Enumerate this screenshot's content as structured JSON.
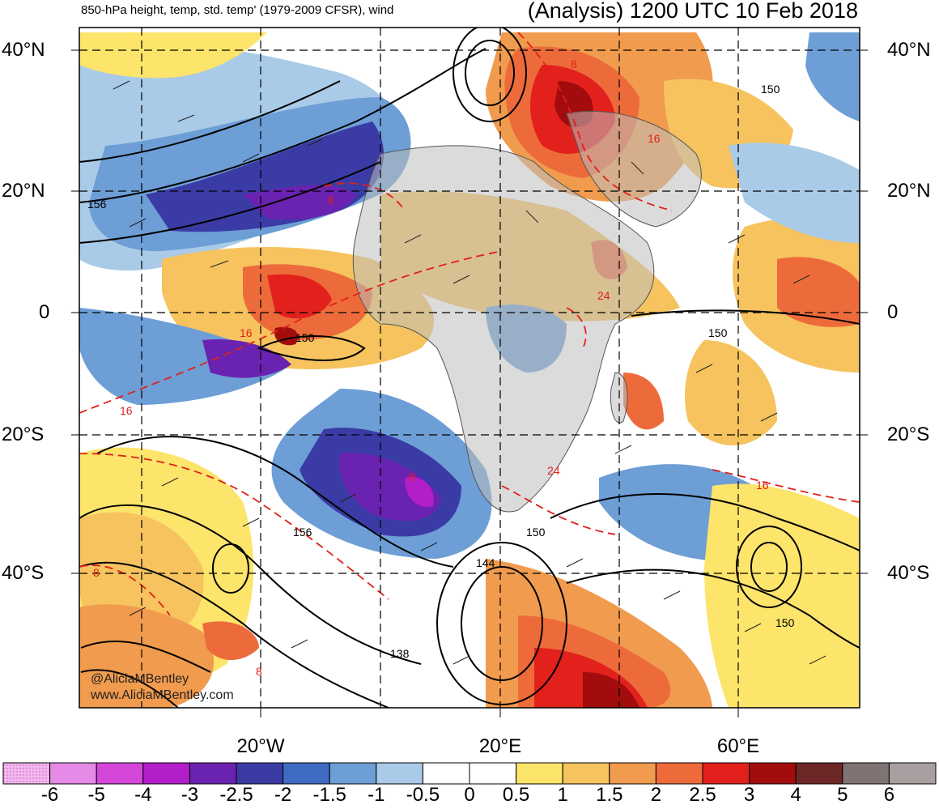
{
  "header": {
    "title_left": "850-hPa height, temp, std. temp' (1979-2009 CFSR), wind",
    "title_right": "(Analysis) 1200 UTC 10 Feb 2018"
  },
  "axes": {
    "lat_left": [
      "40°N",
      "20°N",
      "0",
      "20°S",
      "40°S"
    ],
    "lat_right": [
      "40°N",
      "20°N",
      "0",
      "20°S",
      "40°S"
    ],
    "lon": [
      "20°W",
      "20°E",
      "60°E"
    ]
  },
  "contour_labels": {
    "height": [
      "156",
      "150",
      "150",
      "156",
      "150",
      "144",
      "138",
      "150",
      "150"
    ],
    "temperature": [
      "8",
      "8",
      "16",
      "16",
      "24",
      "24",
      "16",
      "8",
      "8",
      "8",
      "16"
    ]
  },
  "credit": {
    "twitter": "@AliciaMBentley",
    "website": "www.AliciaMBentley.com"
  },
  "colorbar": {
    "ticks": [
      "-6",
      "-5",
      "-4",
      "-3",
      "-2.5",
      "-2",
      "-1.5",
      "-1",
      "-0.5",
      "0",
      "0.5",
      "1",
      "1.5",
      "2",
      "2.5",
      "3",
      "4",
      "5",
      "6"
    ],
    "colors": [
      "#f2b8ee",
      "#e58ae6",
      "#d447d8",
      "#b21fc9",
      "#6a22b0",
      "#3b3ba6",
      "#3d6cc2",
      "#6d9ed6",
      "#a9cbe8",
      "#ffffff",
      "#ffffff",
      "#fde46b",
      "#f6c35e",
      "#f19b4e",
      "#ed6b3b",
      "#e2211c",
      "#a30c0c",
      "#6e2727",
      "#7f7373",
      "#a8a0a0"
    ]
  },
  "colors": {
    "continent_gray": "#bdbdbd",
    "contour_height": "#000000",
    "contour_temp": "#e0201c"
  }
}
